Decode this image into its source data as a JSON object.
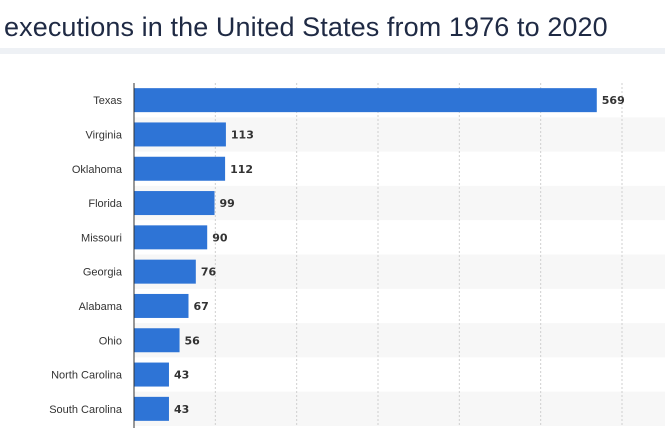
{
  "title": "executions in the United States from 1976 to 2020",
  "colors": {
    "bar": "#2e74d6",
    "stripe": "#f7f7f7",
    "grid": "#cfcfcf",
    "axis": "#333333",
    "text": "#333333"
  },
  "chart_data": {
    "type": "bar",
    "orientation": "horizontal",
    "title": "executions in the United States from 1976 to 2020",
    "xlabel": "",
    "ylabel": "",
    "categories": [
      "Texas",
      "Virginia",
      "Oklahoma",
      "Florida",
      "Missouri",
      "Georgia",
      "Alabama",
      "Ohio",
      "North Carolina",
      "South Carolina"
    ],
    "values": [
      569,
      113,
      112,
      99,
      90,
      76,
      67,
      56,
      43,
      43
    ],
    "xlim": [
      0,
      600
    ],
    "grid": true,
    "data_labels": true
  }
}
